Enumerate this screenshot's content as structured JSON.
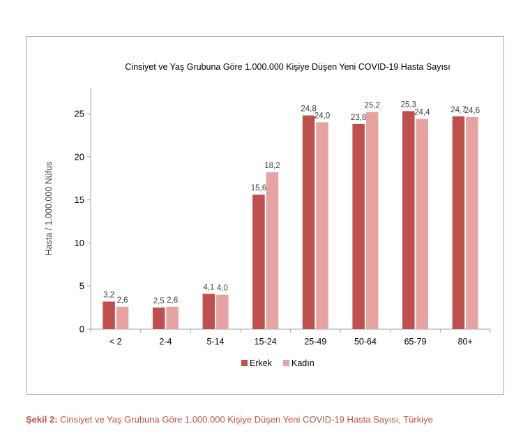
{
  "chart_data": {
    "type": "bar",
    "title": "Cinsiyet ve Yaş Grubuna Göre 1.000.000 Kişiye Düşen Yeni COVID-19 Hasta Sayısı",
    "ylabel": "Hasta / 1.000.000 Nüfus",
    "xlabel": "",
    "categories": [
      "< 2",
      "2-4",
      "5-14",
      "15-24",
      "25-49",
      "50-64",
      "65-79",
      "80+"
    ],
    "series": [
      {
        "name": "Erkek",
        "color": "#c0504d",
        "values": [
          3.2,
          2.5,
          4.1,
          15.6,
          24.8,
          23.8,
          25.3,
          24.7
        ],
        "labels": [
          "3,2",
          "2,5",
          "4,1",
          "15,6",
          "24,8",
          "23,8",
          "25,3",
          "24,7"
        ]
      },
      {
        "name": "Kadın",
        "color": "#e6a3a2",
        "values": [
          2.6,
          2.6,
          4.0,
          18.2,
          24.0,
          25.2,
          24.4,
          24.6
        ],
        "labels": [
          "2,6",
          "2,6",
          "4,0",
          "18,2",
          "24,0",
          "25,2",
          "24,4",
          "24,6"
        ]
      }
    ],
    "ylim": [
      0,
      28
    ],
    "yticks": [
      0,
      5,
      10,
      15,
      20,
      25
    ],
    "grid": false,
    "legend_position": "bottom"
  },
  "caption": {
    "prefix": "Şekil 2:",
    "text": " Cinsiyet ve Yaş Grubuna Göre 1.000.000 Kişiye Düşen Yeni COVID-19 Hasta Sayısı, Türkiye"
  }
}
